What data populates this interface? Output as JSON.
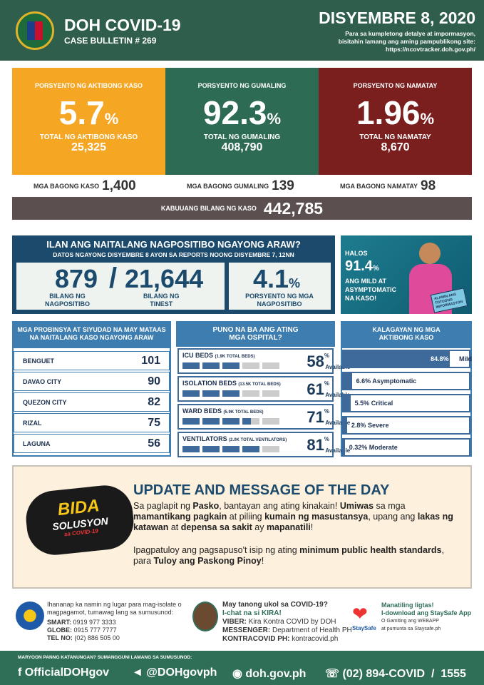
{
  "header": {
    "title": "DOH COVID-19",
    "subtitle": "CASE BULLETIN # 269",
    "date": "DISYEMBRE 8, 2020",
    "info1": "Para sa kumpletong detalye at impormasyon,",
    "info2": "bisitahin lamang ang aming pampublikong site:",
    "url": "https://ncovtracker.doh.gov.ph/"
  },
  "stats": [
    {
      "label": "PORSYENTO NG AKTIBONG KASO",
      "pct": "5.7",
      "total_label": "TOTAL NG AKTIBONG KASO",
      "total": "25,325",
      "new_label": "MGA BAGONG KASO",
      "new": "1,400",
      "color": "#f5a623"
    },
    {
      "label": "PORSYENTO NG GUMALING",
      "pct": "92.3",
      "total_label": "TOTAL NG GUMALING",
      "total": "408,790",
      "new_label": "MGA BAGONG GUMALING",
      "new": "139",
      "color": "#2e6b55"
    },
    {
      "label": "PORSYENTO NG NAMATAY",
      "pct": "1.96",
      "total_label": "TOTAL NG NAMATAY",
      "total": "8,670",
      "new_label": "MGA BAGONG NAMATAY",
      "new": "98",
      "color": "#7a1e1e"
    }
  ],
  "pct_sign": "%",
  "total": {
    "label": "KABUUANG BILANG NG KASO",
    "value": "442,785"
  },
  "positivity": {
    "title": "ILAN ANG NAITALANG NAGPOSITIBO NGAYONG ARAW?",
    "subtitle": "DATOS NGAYONG DISYEMBRE 8 AYON SA REPORTS NOONG DISYEMBRE 7, 12NN",
    "positive": "879",
    "slash": "/",
    "tested": "21,644",
    "positive_label1": "BILANG NG",
    "positive_label2": "NAGPOSITIBO",
    "tested_label1": "BILANG NG",
    "tested_label2": "TINEST",
    "rate": "4.1",
    "rate_label1": "PORSYENTO NG MGA",
    "rate_label2": "NAGPOSITIBO"
  },
  "promo": {
    "halos": "HALOS",
    "pct": "91.4",
    "l1": "ANG MILD AT",
    "l2": "ASYMPTOMATIC",
    "l3": "NA KASO!",
    "badge": "ALAMIN ANG TOTOONG IMPORMASYON"
  },
  "provinces": {
    "title1": "MGA PROBINSYA AT SIYUDAD NA MAY MATAAS",
    "title2": "NA NAITALANG KASO NGAYONG ARAW",
    "items": [
      {
        "name": "BENGUET",
        "value": "101"
      },
      {
        "name": "DAVAO CITY",
        "value": "90"
      },
      {
        "name": "QUEZON CITY",
        "value": "82"
      },
      {
        "name": "RIZAL",
        "value": "75"
      },
      {
        "name": "LAGUNA",
        "value": "56"
      }
    ]
  },
  "hospitals": {
    "title1": "PUNO NA BA ANG ATING",
    "title2": "MGA OSPITAL?",
    "available": "Available",
    "items": [
      {
        "name": "ICU BEDS",
        "total": "(1.9K TOTAL BEDS)",
        "pct": "58"
      },
      {
        "name": "ISOLATION BEDS",
        "total": "(13.5K TOTAL BEDS)",
        "pct": "61"
      },
      {
        "name": "WARD BEDS",
        "total": "(5.9K TOTAL BEDS)",
        "pct": "71"
      },
      {
        "name": "VENTILATORS",
        "total": "(2.0K TOTAL VENTILATORS)",
        "pct": "81"
      }
    ]
  },
  "status": {
    "title1": "KALAGAYAN NG MGA",
    "title2": "AKTIBONG KASO",
    "items": [
      {
        "pct": 84.8,
        "label": "84.8%",
        "name": "Mild"
      },
      {
        "pct": 6.6,
        "label": "6.6%",
        "name": "Asymptomatic"
      },
      {
        "pct": 5.5,
        "label": "5.5%",
        "name": "Critical"
      },
      {
        "pct": 2.8,
        "label": "2.8%",
        "name": "Severe"
      },
      {
        "pct": 0.32,
        "label": "0.32%",
        "name": "Moderate"
      }
    ],
    "bar_color": "#3d6a9a"
  },
  "message": {
    "logo_text": "BIDA SOLUSYON SA COVID-19",
    "title": "UPDATE AND MESSAGE OF THE DAY",
    "p1": [
      {
        "t": "Sa paglapit ng "
      },
      {
        "t": "Pasko",
        "b": true
      },
      {
        "t": ", bantayan ang ating kinakain! "
      },
      {
        "t": "Umiwas",
        "b": true
      },
      {
        "t": " sa mga "
      },
      {
        "t": "mamantikang pagkain",
        "b": true
      },
      {
        "t": " at piliing "
      },
      {
        "t": "kumain ng masustansya",
        "b": true
      },
      {
        "t": ", upang ang "
      },
      {
        "t": "lakas ng katawan",
        "b": true
      },
      {
        "t": " at "
      },
      {
        "t": "depensa sa sakit",
        "b": true
      },
      {
        "t": " ay "
      },
      {
        "t": "mapanatili",
        "b": true
      },
      {
        "t": "!"
      }
    ],
    "p2": [
      {
        "t": "Ipagpatuloy ang pagsapuso't isip ng ating "
      },
      {
        "t": "minimum public health standards",
        "b": true
      },
      {
        "t": ", para "
      },
      {
        "t": "Tuloy ang Paskong Pinoy",
        "b": true
      },
      {
        "t": "!"
      }
    ]
  },
  "contacts": {
    "c1": {
      "l1": "Ihananap ka namin ng lugar para mag-isolate o",
      "l2": "magpagamot, tumawag lang sa sumusunod:",
      "smart_k": "SMART:",
      "smart": "0919 977 3333",
      "globe_k": "GLOBE:",
      "globe": "0915 777 7777",
      "tel_k": "TEL NO:",
      "tel": "(02) 886 505 00"
    },
    "c2": {
      "l1": "May tanong ukol sa COVID-19?",
      "l2": "I-chat na si KIRA!",
      "viber_k": "VIBER:",
      "viber": "Kira Kontra COVID by DOH",
      "msg_k": "MESSENGER:",
      "msg": "Department of Health PH",
      "kc_k": "KONTRACOVID PH:",
      "kc": "kontracovid.ph"
    },
    "c3": {
      "logo": "StaySafe",
      "l1": "Manatiling ligtas!",
      "l2": "I-download ang StaySafe App",
      "l3": "O Gamiting ang WEBAPP",
      "l4": "at pumunta sa Staysafe.ph"
    }
  },
  "footer": {
    "label": "MARYOON PANNG KATANUNGAN? SUMANGGUNI LAMANG SA SUMUSUNOD:",
    "facebook": "OfficialDOHgov",
    "twitter": "@DOHgovph",
    "web": "doh.gov.ph",
    "phone": "(02) 894-COVID  /  1555"
  }
}
